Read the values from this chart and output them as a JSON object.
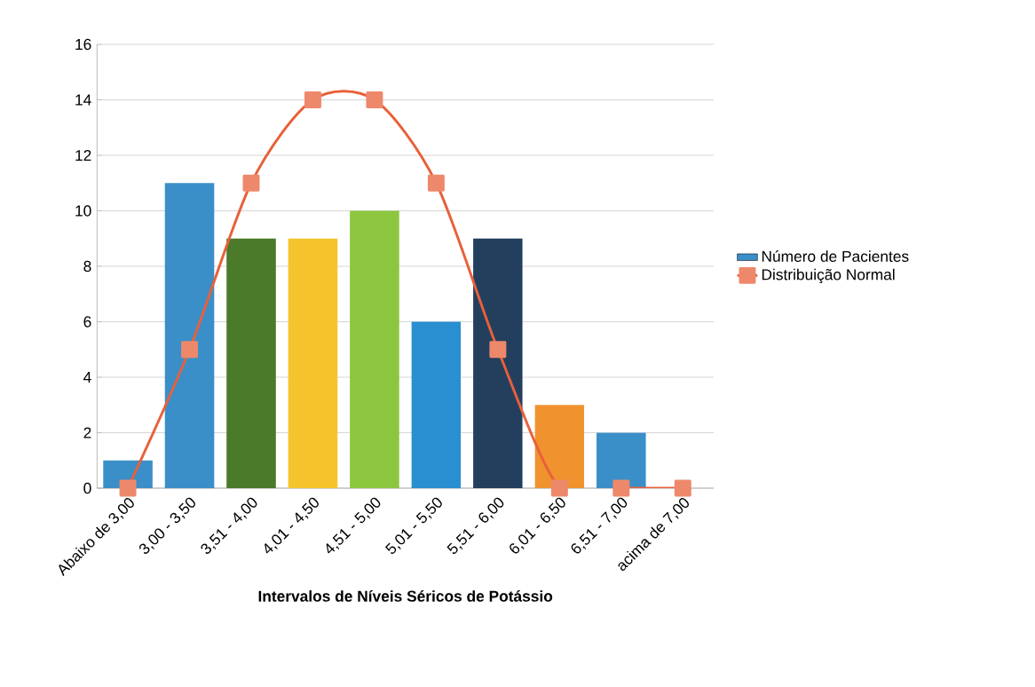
{
  "chart_data": {
    "type": "bar",
    "xlabel": "Intervalos de Níveis Séricos de Potássio",
    "categories": [
      "Abaixo de 3,00",
      "3,00 - 3,50",
      "3,51 - 4,00",
      "4,01 - 4,50",
      "4,51 - 5,00",
      "5,01 - 5,50",
      "5,51 - 6,00",
      "6,01 - 6,50",
      "6,51 - 7,00",
      "acima de 7,00"
    ],
    "series": [
      {
        "name": "Número de Pacientes",
        "colors": [
          "#3a8fc9",
          "#3a8fc9",
          "#4a7a2a",
          "#f5c42c",
          "#8cc63f",
          "#2a8fd0",
          "#243f5e",
          "#f0922e",
          "#3a8fc9",
          "#3a8fc9"
        ],
        "values": [
          1,
          11,
          9,
          9,
          10,
          6,
          9,
          3,
          2,
          0
        ]
      },
      {
        "name": "Distribuição Normal",
        "type": "line",
        "color": "#e8603a",
        "marker": "square",
        "values": [
          0,
          5,
          11,
          14,
          14,
          11,
          5,
          0,
          0,
          0
        ]
      }
    ],
    "ylim": [
      0,
      16
    ],
    "yticks": [
      0,
      2,
      4,
      6,
      8,
      10,
      12,
      14,
      16
    ],
    "grid": "y",
    "legend": "right"
  }
}
